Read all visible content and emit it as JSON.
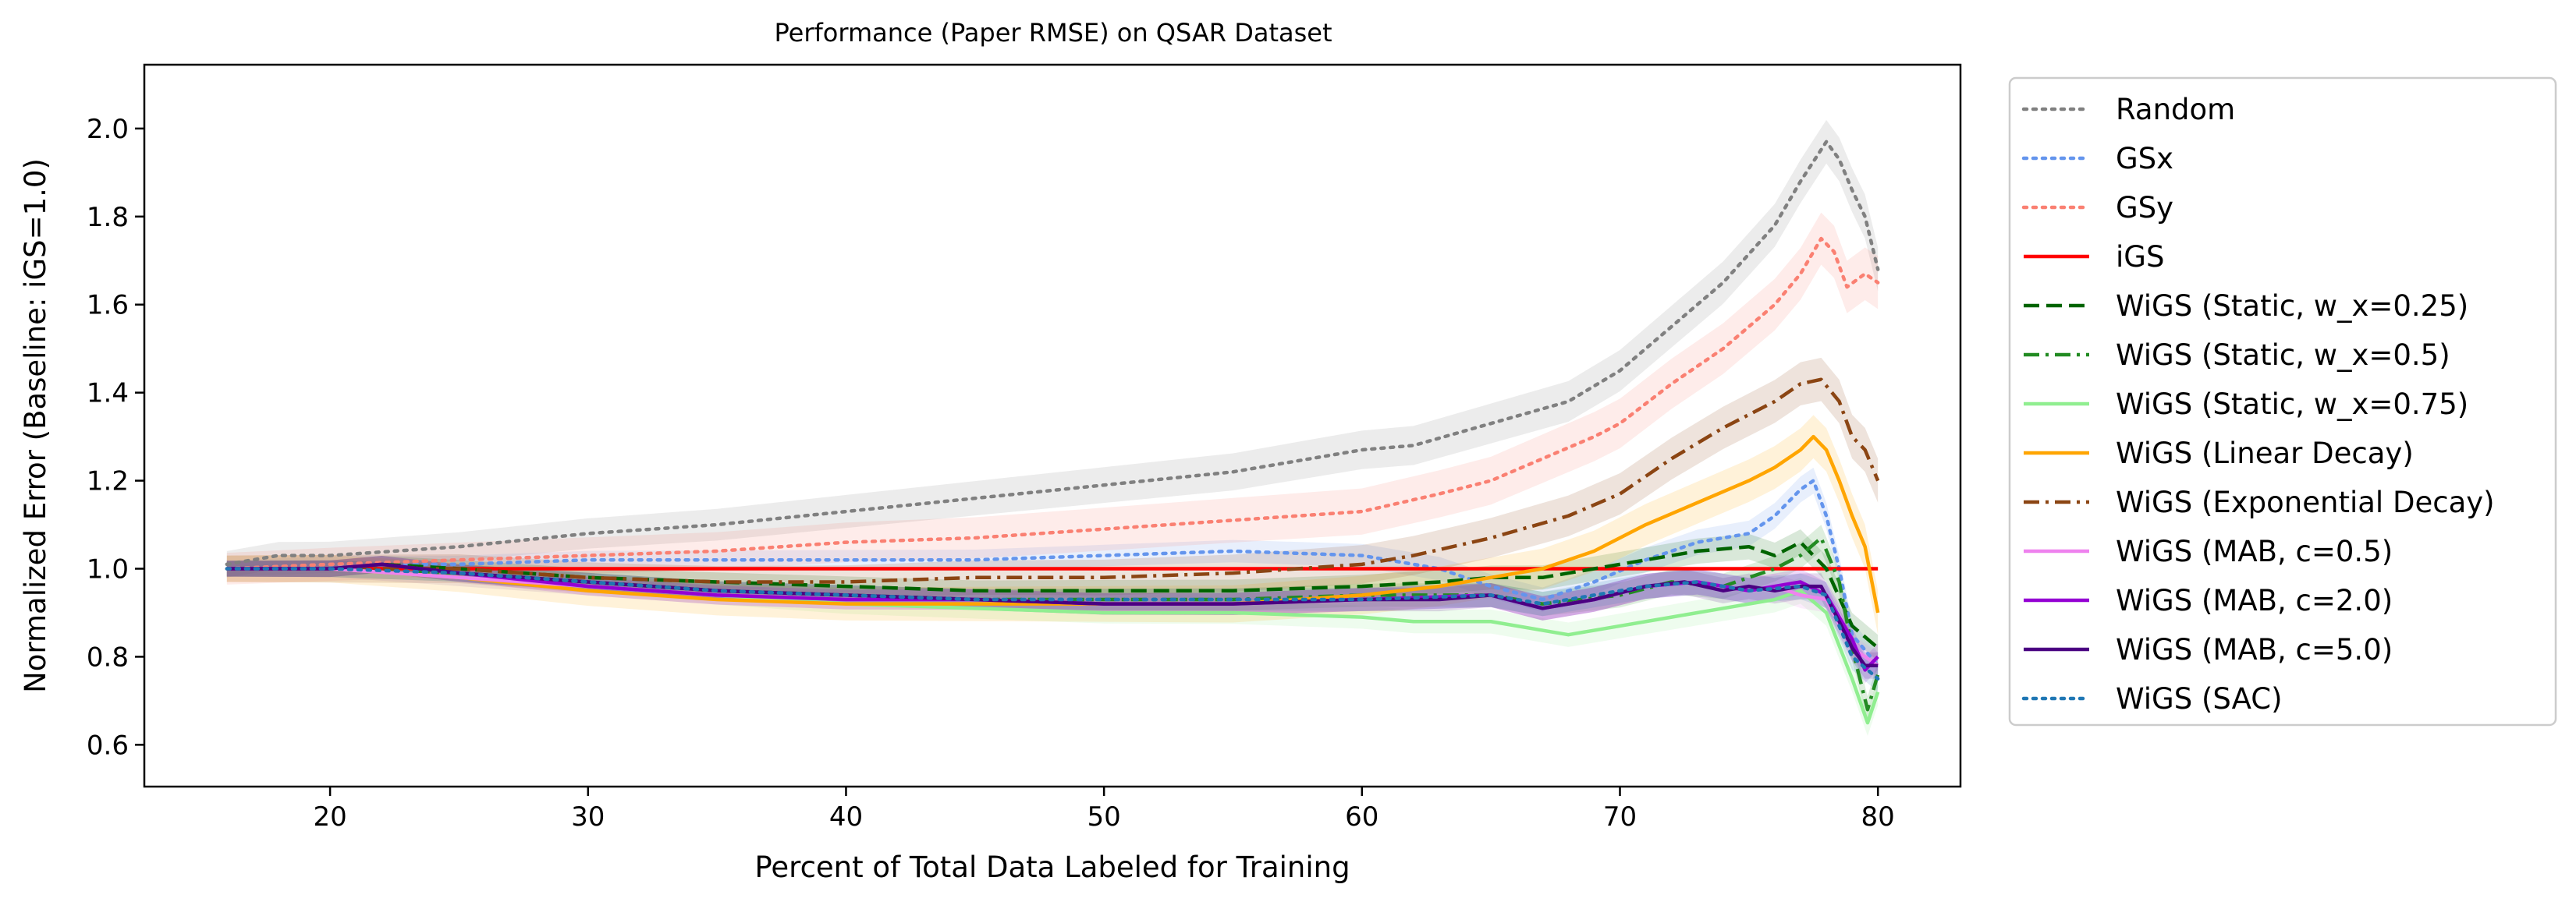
{
  "chart_data": {
    "type": "line",
    "title": "Performance (Paper RMSE) on QSAR Dataset",
    "xlabel": "Percent of Total Data Labeled for Training",
    "ylabel": "Normalized Error (Baseline: iGS=1.0)",
    "xlim": [
      12.8,
      83.2
    ],
    "ylim": [
      0.505,
      2.145
    ],
    "xticks": [
      20,
      30,
      40,
      50,
      60,
      70,
      80
    ],
    "yticks": [
      0.6,
      0.8,
      1.0,
      1.2,
      1.4,
      1.6,
      1.8,
      2.0
    ],
    "grid": false,
    "legend_position": "outside-right",
    "series": [
      {
        "name": "Random",
        "color": "#808080",
        "dash": "dotted",
        "band": 0.05,
        "points": [
          [
            16,
            1.01
          ],
          [
            18,
            1.03
          ],
          [
            20,
            1.03
          ],
          [
            25,
            1.05
          ],
          [
            30,
            1.08
          ],
          [
            35,
            1.1
          ],
          [
            40,
            1.13
          ],
          [
            45,
            1.16
          ],
          [
            50,
            1.19
          ],
          [
            55,
            1.22
          ],
          [
            60,
            1.27
          ],
          [
            62,
            1.28
          ],
          [
            65,
            1.33
          ],
          [
            68,
            1.38
          ],
          [
            70,
            1.45
          ],
          [
            72,
            1.55
          ],
          [
            74,
            1.65
          ],
          [
            76,
            1.78
          ],
          [
            77,
            1.88
          ],
          [
            78,
            1.97
          ],
          [
            78.5,
            1.93
          ],
          [
            79,
            1.86
          ],
          [
            79.5,
            1.8
          ],
          [
            80,
            1.68
          ]
        ]
      },
      {
        "name": "GSx",
        "color": "#6495ED",
        "dash": "dotted",
        "band": 0.03,
        "points": [
          [
            16,
            1.0
          ],
          [
            20,
            1.01
          ],
          [
            25,
            1.01
          ],
          [
            30,
            1.02
          ],
          [
            35,
            1.02
          ],
          [
            40,
            1.02
          ],
          [
            45,
            1.02
          ],
          [
            50,
            1.03
          ],
          [
            55,
            1.04
          ],
          [
            60,
            1.03
          ],
          [
            63,
            1.0
          ],
          [
            65,
            0.96
          ],
          [
            67,
            0.93
          ],
          [
            69,
            0.97
          ],
          [
            71,
            1.02
          ],
          [
            73,
            1.06
          ],
          [
            75,
            1.08
          ],
          [
            76,
            1.12
          ],
          [
            77,
            1.18
          ],
          [
            77.5,
            1.2
          ],
          [
            78,
            1.12
          ],
          [
            78.5,
            1.0
          ],
          [
            79,
            0.85
          ],
          [
            80,
            0.78
          ]
        ]
      },
      {
        "name": "GSy",
        "color": "#FA8072",
        "dash": "dotted",
        "band": 0.06,
        "points": [
          [
            16,
            1.0
          ],
          [
            20,
            1.01
          ],
          [
            25,
            1.02
          ],
          [
            30,
            1.03
          ],
          [
            35,
            1.04
          ],
          [
            40,
            1.06
          ],
          [
            45,
            1.07
          ],
          [
            50,
            1.09
          ],
          [
            55,
            1.11
          ],
          [
            60,
            1.13
          ],
          [
            63,
            1.17
          ],
          [
            65,
            1.2
          ],
          [
            67,
            1.25
          ],
          [
            69,
            1.3
          ],
          [
            70,
            1.33
          ],
          [
            72,
            1.42
          ],
          [
            74,
            1.5
          ],
          [
            76,
            1.6
          ],
          [
            77,
            1.67
          ],
          [
            77.8,
            1.75
          ],
          [
            78.3,
            1.72
          ],
          [
            78.8,
            1.64
          ],
          [
            79.5,
            1.67
          ],
          [
            80,
            1.65
          ]
        ]
      },
      {
        "name": "iGS",
        "color": "#FF0000",
        "dash": "solid",
        "band": 0,
        "points": [
          [
            16,
            1.0
          ],
          [
            80,
            1.0
          ]
        ]
      },
      {
        "name": "WiGS (Static, w_x=0.25)",
        "color": "#006400",
        "dash": "dashed",
        "band": 0.03,
        "points": [
          [
            16,
            1.0
          ],
          [
            20,
            1.0
          ],
          [
            22,
            1.01
          ],
          [
            25,
            1.0
          ],
          [
            30,
            0.98
          ],
          [
            35,
            0.97
          ],
          [
            40,
            0.96
          ],
          [
            45,
            0.95
          ],
          [
            50,
            0.95
          ],
          [
            55,
            0.95
          ],
          [
            60,
            0.96
          ],
          [
            63,
            0.97
          ],
          [
            65,
            0.98
          ],
          [
            67,
            0.98
          ],
          [
            70,
            1.01
          ],
          [
            73,
            1.04
          ],
          [
            75,
            1.05
          ],
          [
            76,
            1.03
          ],
          [
            77,
            1.06
          ],
          [
            77.5,
            1.03
          ],
          [
            78,
            1.0
          ],
          [
            79,
            0.87
          ],
          [
            80,
            0.82
          ]
        ]
      },
      {
        "name": "WiGS (Static, w_x=0.5)",
        "color": "#228B22",
        "dash": "dashdot",
        "band": 0.03,
        "points": [
          [
            16,
            1.0
          ],
          [
            20,
            1.0
          ],
          [
            25,
            0.99
          ],
          [
            30,
            0.97
          ],
          [
            35,
            0.95
          ],
          [
            40,
            0.94
          ],
          [
            45,
            0.93
          ],
          [
            50,
            0.93
          ],
          [
            55,
            0.93
          ],
          [
            60,
            0.94
          ],
          [
            65,
            0.94
          ],
          [
            67,
            0.92
          ],
          [
            70,
            0.94
          ],
          [
            72,
            0.97
          ],
          [
            74,
            0.96
          ],
          [
            76,
            1.0
          ],
          [
            77,
            1.03
          ],
          [
            77.8,
            1.07
          ],
          [
            78.5,
            0.97
          ],
          [
            79,
            0.82
          ],
          [
            79.6,
            0.68
          ],
          [
            80,
            0.76
          ]
        ]
      },
      {
        "name": "WiGS (Static, w_x=0.75)",
        "color": "#90EE90",
        "dash": "solid",
        "band": 0.03,
        "points": [
          [
            16,
            1.0
          ],
          [
            20,
            1.0
          ],
          [
            25,
            0.98
          ],
          [
            30,
            0.96
          ],
          [
            35,
            0.94
          ],
          [
            40,
            0.92
          ],
          [
            45,
            0.91
          ],
          [
            50,
            0.9
          ],
          [
            55,
            0.9
          ],
          [
            60,
            0.89
          ],
          [
            62,
            0.88
          ],
          [
            65,
            0.88
          ],
          [
            67,
            0.86
          ],
          [
            68,
            0.85
          ],
          [
            70,
            0.87
          ],
          [
            72,
            0.89
          ],
          [
            74,
            0.91
          ],
          [
            76,
            0.93
          ],
          [
            77,
            0.95
          ],
          [
            78,
            0.9
          ],
          [
            79,
            0.75
          ],
          [
            79.6,
            0.65
          ],
          [
            80,
            0.72
          ]
        ]
      },
      {
        "name": "WiGS (Linear Decay)",
        "color": "#FFA500",
        "dash": "solid",
        "band": 0.05,
        "points": [
          [
            16,
            1.0
          ],
          [
            20,
            1.0
          ],
          [
            25,
            0.98
          ],
          [
            30,
            0.95
          ],
          [
            35,
            0.93
          ],
          [
            40,
            0.92
          ],
          [
            45,
            0.92
          ],
          [
            50,
            0.92
          ],
          [
            55,
            0.92
          ],
          [
            60,
            0.94
          ],
          [
            63,
            0.96
          ],
          [
            65,
            0.98
          ],
          [
            67,
            1.0
          ],
          [
            69,
            1.04
          ],
          [
            71,
            1.1
          ],
          [
            73,
            1.15
          ],
          [
            75,
            1.2
          ],
          [
            76,
            1.23
          ],
          [
            77,
            1.27
          ],
          [
            77.5,
            1.3
          ],
          [
            78,
            1.27
          ],
          [
            78.5,
            1.2
          ],
          [
            79,
            1.12
          ],
          [
            79.5,
            1.05
          ],
          [
            80,
            0.9
          ]
        ]
      },
      {
        "name": "WiGS (Exponential Decay)",
        "color": "#8B4513",
        "dash": "dashdot",
        "band": 0.05,
        "points": [
          [
            16,
            1.0
          ],
          [
            20,
            1.0
          ],
          [
            25,
            1.0
          ],
          [
            30,
            0.98
          ],
          [
            35,
            0.97
          ],
          [
            40,
            0.97
          ],
          [
            45,
            0.98
          ],
          [
            50,
            0.98
          ],
          [
            55,
            0.99
          ],
          [
            60,
            1.01
          ],
          [
            62,
            1.03
          ],
          [
            65,
            1.07
          ],
          [
            68,
            1.12
          ],
          [
            70,
            1.17
          ],
          [
            72,
            1.25
          ],
          [
            74,
            1.32
          ],
          [
            76,
            1.38
          ],
          [
            77,
            1.42
          ],
          [
            77.8,
            1.43
          ],
          [
            78.5,
            1.38
          ],
          [
            79,
            1.3
          ],
          [
            79.5,
            1.27
          ],
          [
            80,
            1.2
          ]
        ]
      },
      {
        "name": "WiGS (MAB, c=0.5)",
        "color": "#EE82EE",
        "dash": "solid",
        "band": 0.03,
        "points": [
          [
            16,
            1.0
          ],
          [
            20,
            1.0
          ],
          [
            25,
            0.98
          ],
          [
            30,
            0.96
          ],
          [
            35,
            0.94
          ],
          [
            40,
            0.93
          ],
          [
            45,
            0.93
          ],
          [
            50,
            0.92
          ],
          [
            55,
            0.92
          ],
          [
            60,
            0.93
          ],
          [
            65,
            0.94
          ],
          [
            67,
            0.91
          ],
          [
            69,
            0.93
          ],
          [
            71,
            0.96
          ],
          [
            73,
            0.97
          ],
          [
            75,
            0.95
          ],
          [
            76,
            0.96
          ],
          [
            77,
            0.94
          ],
          [
            78,
            0.93
          ],
          [
            79,
            0.82
          ],
          [
            80,
            0.78
          ]
        ]
      },
      {
        "name": "WiGS (MAB, c=2.0)",
        "color": "#9400D3",
        "dash": "solid",
        "band": 0.03,
        "points": [
          [
            16,
            1.0
          ],
          [
            20,
            1.0
          ],
          [
            22,
            1.01
          ],
          [
            25,
            0.99
          ],
          [
            30,
            0.96
          ],
          [
            35,
            0.94
          ],
          [
            40,
            0.93
          ],
          [
            45,
            0.93
          ],
          [
            50,
            0.92
          ],
          [
            55,
            0.92
          ],
          [
            60,
            0.93
          ],
          [
            65,
            0.94
          ],
          [
            67,
            0.91
          ],
          [
            69,
            0.93
          ],
          [
            71,
            0.96
          ],
          [
            73,
            0.97
          ],
          [
            75,
            0.95
          ],
          [
            76,
            0.96
          ],
          [
            77,
            0.97
          ],
          [
            78,
            0.94
          ],
          [
            79,
            0.84
          ],
          [
            79.5,
            0.77
          ],
          [
            80,
            0.8
          ]
        ]
      },
      {
        "name": "WiGS (MAB, c=5.0)",
        "color": "#4B0082",
        "dash": "solid",
        "band": 0.03,
        "points": [
          [
            16,
            1.0
          ],
          [
            20,
            1.0
          ],
          [
            22,
            1.01
          ],
          [
            25,
            0.99
          ],
          [
            30,
            0.97
          ],
          [
            35,
            0.95
          ],
          [
            40,
            0.94
          ],
          [
            45,
            0.93
          ],
          [
            50,
            0.92
          ],
          [
            55,
            0.92
          ],
          [
            60,
            0.93
          ],
          [
            63,
            0.93
          ],
          [
            65,
            0.94
          ],
          [
            67,
            0.91
          ],
          [
            69,
            0.93
          ],
          [
            71,
            0.96
          ],
          [
            72.5,
            0.97
          ],
          [
            74,
            0.95
          ],
          [
            75,
            0.96
          ],
          [
            76,
            0.95
          ],
          [
            77,
            0.96
          ],
          [
            77.8,
            0.96
          ],
          [
            78.5,
            0.88
          ],
          [
            79,
            0.82
          ],
          [
            79.5,
            0.78
          ],
          [
            80,
            0.78
          ]
        ]
      },
      {
        "name": "WiGS (SAC)",
        "color": "#1F77B4",
        "dash": "dotted",
        "band": 0.03,
        "points": [
          [
            16,
            1.0
          ],
          [
            20,
            1.0
          ],
          [
            25,
            0.99
          ],
          [
            30,
            0.97
          ],
          [
            35,
            0.95
          ],
          [
            40,
            0.94
          ],
          [
            45,
            0.93
          ],
          [
            50,
            0.93
          ],
          [
            55,
            0.93
          ],
          [
            60,
            0.93
          ],
          [
            65,
            0.94
          ],
          [
            67,
            0.92
          ],
          [
            69,
            0.94
          ],
          [
            71,
            0.96
          ],
          [
            73,
            0.97
          ],
          [
            75,
            0.95
          ],
          [
            77,
            0.96
          ],
          [
            78,
            0.94
          ],
          [
            79,
            0.8
          ],
          [
            80,
            0.75
          ]
        ]
      }
    ]
  }
}
